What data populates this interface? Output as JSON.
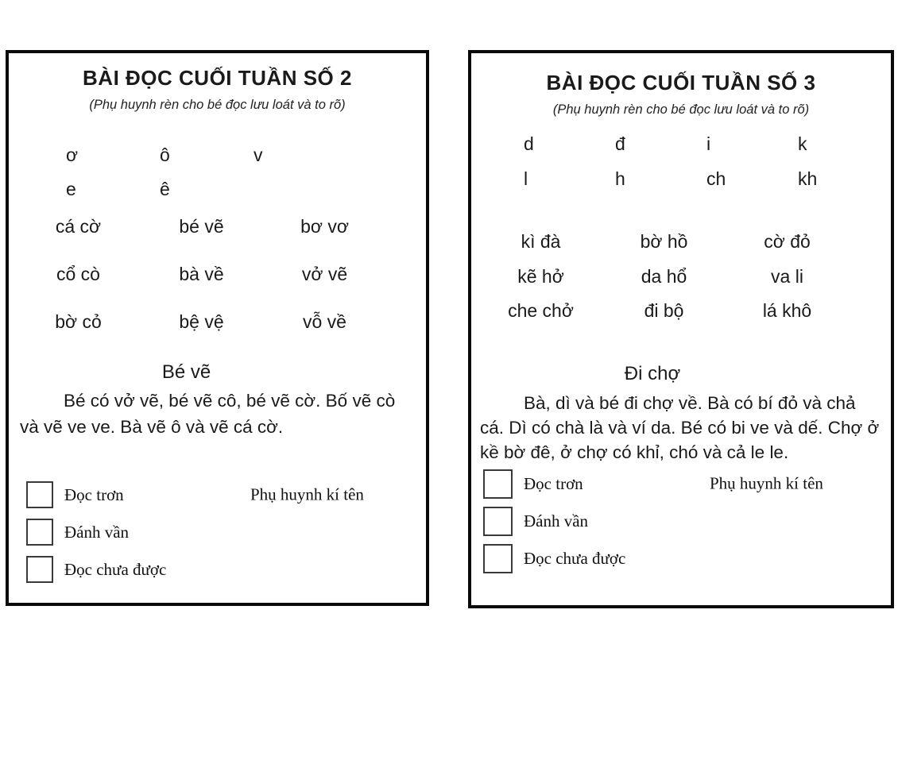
{
  "cards": [
    {
      "title": "BÀI ĐỌC CUỐI TUẦN SỐ 2",
      "subtitle": "(Phụ huynh rèn cho bé đọc lưu loát và to rõ)",
      "letter_rows": [
        [
          "ơ",
          "ô",
          "v"
        ],
        [
          "e",
          "ê"
        ]
      ],
      "word_rows": [
        [
          "cá cờ",
          "bé vẽ",
          "bơ vơ"
        ],
        [
          "cổ cò",
          "bà về",
          "vở vẽ"
        ],
        [
          "bờ cỏ",
          "bệ vệ",
          "vỗ về"
        ]
      ],
      "passage_title": "Bé vẽ",
      "passage": "Bé có vở vẽ, bé vẽ cô, bé vẽ cờ. Bố vẽ cò và vẽ ve ve. Bà vẽ ô và vẽ cá cờ.",
      "checkboxes": [
        "Đọc trơn",
        "Đánh vần",
        "Đọc chưa được"
      ],
      "sign_label": "Phụ huynh kí tên"
    },
    {
      "title": "BÀI ĐỌC CUỐI TUẦN SỐ 3",
      "subtitle": "(Phụ huynh rèn cho bé đọc lưu loát và to rõ)",
      "letter_rows": [
        [
          "d",
          "đ",
          "i",
          "k"
        ],
        [
          "l",
          "h",
          "ch",
          "kh"
        ]
      ],
      "word_rows": [
        [
          "kì đà",
          "bờ hồ",
          "cờ đỏ"
        ],
        [
          "kẽ hở",
          "da hổ",
          "va li"
        ],
        [
          "che chở",
          "đi bộ",
          "lá khô"
        ]
      ],
      "passage_title": "Đi chợ",
      "passage": "Bà, dì và bé đi chợ về. Bà có bí đỏ và chả cá. Dì có chà là và ví da. Bé có bi ve và dế. Chợ ở kề bờ đê, ở chợ có khỉ, chó và cả le le.",
      "checkboxes": [
        "Đọc trơn",
        "Đánh vần",
        "Đọc chưa được"
      ],
      "sign_label": "Phụ huynh kí tên"
    }
  ]
}
